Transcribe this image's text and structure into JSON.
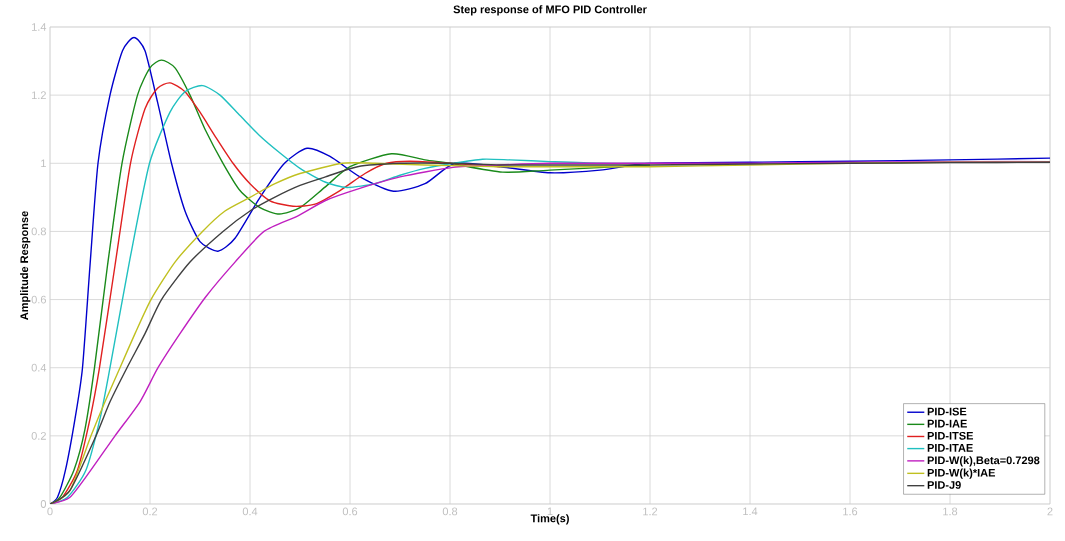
{
  "chart_data": {
    "type": "line",
    "title": "Step response of MFO PID Controller",
    "xlabel": "Time(s)",
    "ylabel": "Amplitude Response",
    "xlim": [
      0,
      2
    ],
    "xticks": [
      0,
      0.2,
      0.4,
      0.6,
      0.8,
      1,
      1.2,
      1.4,
      1.6,
      1.8,
      2
    ],
    "ylim": [
      0,
      1.4
    ],
    "yticks": [
      0,
      0.2,
      0.4,
      0.6,
      0.8,
      1,
      1.2,
      1.4
    ],
    "grid": true,
    "legend": "bottom right",
    "marker": "none",
    "line_style": "solid",
    "series": [
      {
        "name": "PID-ISE",
        "color": "#0000cc",
        "x": [
          0,
          0.015,
          0.031,
          0.05,
          0.065,
          0.08,
          0.096,
          0.12,
          0.145,
          0.168,
          0.19,
          0.215,
          0.243,
          0.27,
          0.3,
          0.336,
          0.37,
          0.42,
          0.469,
          0.514,
          0.56,
          0.62,
          0.687,
          0.75,
          0.81,
          0.9,
          1.0,
          1.1,
          1.2,
          1.4,
          1.6,
          1.8,
          2.0
        ],
        "values": [
          0,
          0.02,
          0.1,
          0.25,
          0.4,
          0.7,
          1.0,
          1.2,
          1.33,
          1.369,
          1.33,
          1.18,
          1.0,
          0.86,
          0.77,
          0.742,
          0.78,
          0.9,
          1.0,
          1.044,
          1.02,
          0.96,
          0.918,
          0.94,
          1.0,
          0.99,
          0.972,
          0.98,
          1.0,
          1.003,
          1.006,
          1.01,
          1.015
        ]
      },
      {
        "name": "PID-IAE",
        "color": "#1a8a1a",
        "x": [
          0,
          0.02,
          0.048,
          0.07,
          0.089,
          0.115,
          0.144,
          0.175,
          0.2,
          0.223,
          0.25,
          0.28,
          0.31,
          0.346,
          0.38,
          0.42,
          0.459,
          0.5,
          0.55,
          0.6,
          0.683,
          0.75,
          0.8,
          0.905,
          1.0,
          1.2
        ],
        "values": [
          0,
          0.02,
          0.1,
          0.22,
          0.4,
          0.7,
          1.0,
          1.2,
          1.28,
          1.303,
          1.28,
          1.2,
          1.1,
          1.0,
          0.92,
          0.87,
          0.851,
          0.87,
          0.93,
          0.99,
          1.028,
          1.01,
          1.0,
          0.974,
          0.98,
          0.995
        ]
      },
      {
        "name": "PID-ITSE",
        "color": "#e02020",
        "x": [
          0,
          0.025,
          0.055,
          0.08,
          0.099,
          0.13,
          0.161,
          0.19,
          0.215,
          0.24,
          0.27,
          0.3,
          0.33,
          0.366,
          0.4,
          0.44,
          0.486,
          0.53,
          0.58,
          0.63,
          0.673,
          0.72,
          0.8,
          0.9
        ],
        "values": [
          0,
          0.02,
          0.1,
          0.25,
          0.4,
          0.7,
          1.0,
          1.16,
          1.22,
          1.236,
          1.21,
          1.15,
          1.08,
          1.0,
          0.94,
          0.89,
          0.874,
          0.88,
          0.92,
          0.97,
          1.0,
          1.006,
          1.0,
          0.99
        ]
      },
      {
        "name": "PID-ITAE",
        "color": "#20c0c0",
        "x": [
          0,
          0.035,
          0.072,
          0.1,
          0.12,
          0.16,
          0.199,
          0.24,
          0.27,
          0.305,
          0.34,
          0.38,
          0.42,
          0.46,
          0.5,
          0.55,
          0.594,
          0.65,
          0.7,
          0.75,
          0.806,
          0.865,
          0.92,
          1.0,
          1.1,
          1.2
        ],
        "values": [
          0,
          0.02,
          0.1,
          0.25,
          0.4,
          0.72,
          1.0,
          1.15,
          1.21,
          1.228,
          1.2,
          1.14,
          1.08,
          1.03,
          0.985,
          0.945,
          0.929,
          0.94,
          0.965,
          0.985,
          1.0,
          1.012,
          1.01,
          1.005,
          1.0,
          1.0
        ]
      },
      {
        "name": "PID-W(k),Beta=0.7298",
        "color": "#c020c0",
        "x": [
          0,
          0.04,
          0.082,
          0.13,
          0.18,
          0.216,
          0.26,
          0.312,
          0.37,
          0.428,
          0.495,
          0.55,
          0.615,
          0.7,
          0.806,
          0.9,
          1.0,
          1.2,
          1.4,
          1.6,
          1.8,
          2.0
        ],
        "values": [
          0,
          0.02,
          0.1,
          0.2,
          0.3,
          0.4,
          0.5,
          0.609,
          0.71,
          0.8,
          0.845,
          0.89,
          0.924,
          0.96,
          0.988,
          0.995,
          1.0,
          1.0,
          1.0,
          1.003,
          1.005,
          1.005
        ]
      },
      {
        "name": "PID-W(k)*IAE",
        "color": "#c0c020",
        "x": [
          0,
          0.04,
          0.082,
          0.11,
          0.14,
          0.17,
          0.202,
          0.25,
          0.305,
          0.35,
          0.4,
          0.45,
          0.5,
          0.585,
          0.65,
          0.75,
          0.9,
          1.0,
          1.2,
          1.4,
          1.6,
          1.8,
          2.0
        ],
        "values": [
          0,
          0.04,
          0.2,
          0.3,
          0.4,
          0.5,
          0.6,
          0.71,
          0.8,
          0.86,
          0.9,
          0.94,
          0.97,
          1.0,
          1.0,
          0.995,
          0.99,
          0.99,
          0.99,
          0.995,
          1.0,
          1.003,
          1.003
        ]
      },
      {
        "name": "PID-J9",
        "color": "#404040",
        "x": [
          0,
          0.04,
          0.092,
          0.12,
          0.154,
          0.19,
          0.223,
          0.28,
          0.346,
          0.4,
          0.449,
          0.5,
          0.551,
          0.615,
          0.7,
          0.8,
          0.9,
          1.0,
          1.2,
          1.4,
          1.6,
          1.8,
          2.0
        ],
        "values": [
          0,
          0.04,
          0.2,
          0.3,
          0.4,
          0.5,
          0.6,
          0.71,
          0.8,
          0.86,
          0.9,
          0.935,
          0.96,
          0.99,
          1.0,
          1.0,
          0.995,
          0.995,
          0.995,
          0.998,
          1.0,
          1.002,
          1.003
        ]
      }
    ]
  }
}
